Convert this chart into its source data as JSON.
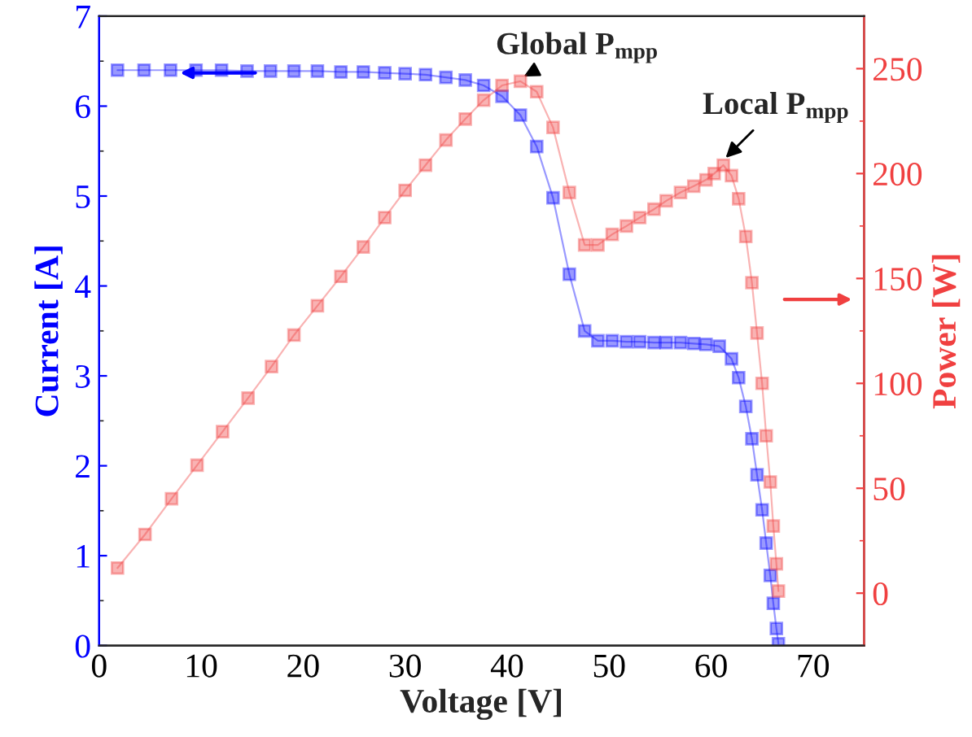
{
  "chart_data": {
    "type": "line",
    "xlabel": "Voltage [V]",
    "ylabel": "Current [A]",
    "y2label": "Power [W]",
    "xlim": [
      0,
      75
    ],
    "xticks": [
      0,
      10,
      20,
      30,
      40,
      50,
      60,
      70
    ],
    "ylim": [
      0,
      7
    ],
    "yticks": [
      0,
      1,
      2,
      3,
      4,
      5,
      6,
      7
    ],
    "y2lim": [
      -25,
      275
    ],
    "y2ticks": [
      0,
      50,
      100,
      150,
      200,
      250
    ],
    "marker": "square",
    "grid": false,
    "legend": false,
    "series": [
      {
        "color": "#0000ff",
        "x": [
          1.8,
          4.4,
          7.0,
          9.5,
          12.0,
          14.5,
          16.8,
          19.1,
          21.4,
          23.7,
          25.9,
          28.0,
          30.0,
          32.0,
          34.0,
          35.9,
          37.7,
          39.5,
          41.3,
          42.9,
          44.5,
          46.1,
          47.6,
          48.9,
          50.3,
          51.7,
          53.0,
          54.4,
          55.6,
          57.0,
          58.3,
          59.5,
          60.8,
          62.0,
          62.7,
          63.4,
          64.0,
          64.5,
          65.0,
          65.4,
          65.8,
          66.1,
          66.4,
          66.6
        ],
        "values": [
          6.4,
          6.4,
          6.4,
          6.4,
          6.4,
          6.39,
          6.39,
          6.39,
          6.39,
          6.38,
          6.38,
          6.37,
          6.36,
          6.35,
          6.32,
          6.29,
          6.23,
          6.11,
          5.9,
          5.55,
          4.98,
          4.13,
          3.5,
          3.39,
          3.39,
          3.38,
          3.38,
          3.37,
          3.37,
          3.37,
          3.36,
          3.35,
          3.33,
          3.19,
          2.98,
          2.66,
          2.3,
          1.9,
          1.51,
          1.14,
          0.78,
          0.47,
          0.19,
          0.02
        ]
      },
      {
        "color": "#f04040",
        "axis": "y2",
        "x": [
          1.8,
          4.5,
          7.1,
          9.6,
          12.1,
          14.6,
          16.9,
          19.1,
          21.4,
          23.7,
          25.9,
          28.0,
          30.0,
          32.0,
          34.0,
          35.9,
          37.7,
          39.5,
          41.3,
          42.9,
          44.5,
          46.1,
          47.6,
          48.9,
          50.3,
          51.7,
          53.0,
          54.4,
          55.6,
          57.0,
          58.3,
          59.5,
          60.3,
          61.2,
          62.0,
          62.7,
          63.4,
          64.0,
          64.5,
          65.0,
          65.4,
          65.8,
          66.1,
          66.4,
          66.6
        ],
        "values": [
          12,
          28,
          45,
          61,
          77,
          93,
          108,
          123,
          137,
          151,
          165,
          179,
          192,
          204,
          216,
          226,
          235,
          242,
          244,
          239,
          222,
          191,
          166,
          166,
          171,
          175,
          179,
          183,
          187,
          191,
          194,
          197,
          200,
          204,
          199,
          188,
          170,
          148,
          124,
          100,
          75,
          53,
          32,
          14,
          1
        ]
      }
    ],
    "annotations": [
      "Global P$_{mpp}$",
      "Local P$_{mpp}$"
    ]
  }
}
